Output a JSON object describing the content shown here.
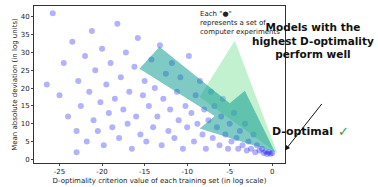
{
  "chart_data": {
    "type": "scatter",
    "x_label": "D-optimality criterion value of each training set (in log scale)",
    "y_label": "Mean absolute deviation (in log units)",
    "x": [
      -26.5,
      -25.8,
      -25,
      -24.5,
      -24,
      -23.5,
      -23,
      -22.8,
      -22.5,
      -22,
      -21.8,
      -21.5,
      -21.2,
      -21,
      -20.8,
      -20.5,
      -20.2,
      -20,
      -19.8,
      -19.5,
      -19.2,
      -19,
      -18.8,
      -18.5,
      -18.2,
      -18,
      -17.8,
      -17.5,
      -17.2,
      -17,
      -16.8,
      -16.5,
      -16.2,
      -16,
      -15.8,
      -15.5,
      -15.2,
      -15,
      -14.8,
      -14.5,
      -14.2,
      -14,
      -13.8,
      -13.5,
      -13.2,
      -13,
      -12.8,
      -12.5,
      -12.2,
      -12,
      -11.8,
      -11.5,
      -11.2,
      -11,
      -10.8,
      -10.5,
      -10.2,
      -10,
      -9.8,
      -9.5,
      -9.2,
      -9,
      -8.8,
      -8.5,
      -8.2,
      -8,
      -7.8,
      -7.5,
      -7.2,
      -7,
      -6.8,
      -6.5,
      -6.2,
      -6,
      -5.8,
      -5.5,
      -5.2,
      -5,
      -4.8,
      -4.5,
      -4.2,
      -4,
      -3.8,
      -3.5,
      -3.2,
      -3,
      -2.8,
      -2.5,
      -2.2,
      -2,
      -1.8,
      -1.5,
      -1.2,
      -1,
      -0.8,
      -0.6,
      -0.4,
      -0.2,
      0,
      -23
    ],
    "values": [
      21,
      41,
      18,
      27,
      12,
      33,
      8,
      22,
      15,
      29,
      5,
      19,
      36,
      11,
      25,
      8,
      16,
      31,
      4,
      21,
      13,
      27,
      9,
      17,
      38,
      6,
      23,
      14,
      30,
      10,
      19,
      3,
      26,
      12,
      34,
      7,
      18,
      22,
      5,
      15,
      28,
      9,
      20,
      12,
      32,
      4,
      17,
      24,
      8,
      14,
      27,
      6,
      19,
      11,
      23,
      3,
      15,
      9,
      29,
      13,
      5,
      18,
      10,
      22,
      7,
      14,
      3,
      11,
      19,
      6,
      15,
      9,
      4,
      12,
      17,
      7,
      3,
      10,
      5,
      13,
      6,
      3,
      8,
      4,
      10,
      2.5,
      5,
      3,
      7,
      2,
      4,
      2.5,
      3,
      1.8,
      2.2,
      1.5,
      2,
      1.6,
      1.8,
      2
    ],
    "color": "#0000ff",
    "marker": "circle",
    "xlim": [
      -28,
      1.5
    ],
    "ylim": [
      -1,
      43
    ],
    "xticks": [
      -25,
      -20,
      -15,
      -10,
      -5,
      0
    ],
    "yticks": [
      0,
      5,
      10,
      15,
      20,
      25,
      30,
      35,
      40
    ],
    "grid": false,
    "annotations": {
      "note": [
        "Each \"●\"",
        "represents a set of",
        "computer experiments"
      ],
      "message": [
        "Models with the",
        "highest D-optimality",
        "perform well"
      ],
      "verdict": "D-optimal",
      "check": "✓"
    }
  }
}
